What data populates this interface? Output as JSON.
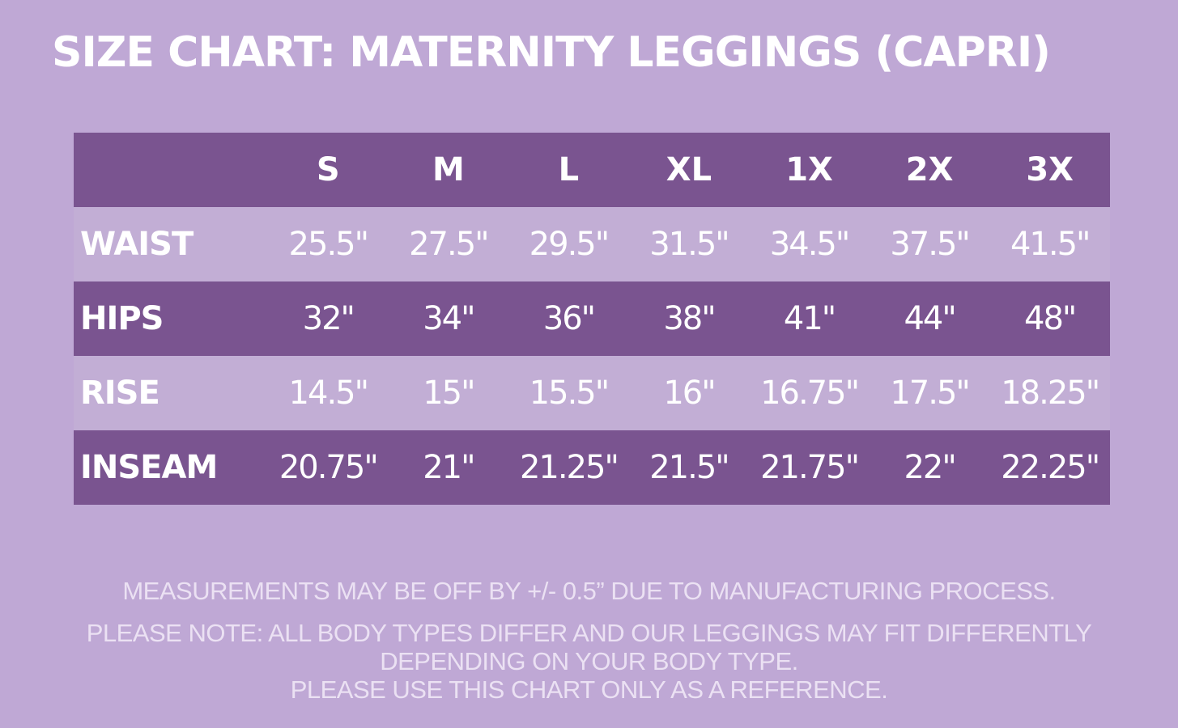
{
  "title": "SIZE CHART: MATERNITY LEGGINGS (CAPRI)",
  "colors": {
    "background": "#bfa8d5",
    "dark_row": "#7a5490",
    "light_row": "#c2aed5",
    "text": "#ffffff",
    "note_text": "#ebe1f3"
  },
  "table": {
    "sizes": [
      "S",
      "M",
      "L",
      "XL",
      "1X",
      "2X",
      "3X"
    ],
    "rows": [
      {
        "label": "WAIST",
        "values": [
          "25.5\"",
          "27.5\"",
          "29.5\"",
          "31.5\"",
          "34.5\"",
          "37.5\"",
          "41.5\""
        ]
      },
      {
        "label": "HIPS",
        "values": [
          "32\"",
          "34\"",
          "36\"",
          "38\"",
          "41\"",
          "44\"",
          "48\""
        ]
      },
      {
        "label": "RISE",
        "values": [
          "14.5\"",
          "15\"",
          "15.5\"",
          "16\"",
          "16.75\"",
          "17.5\"",
          "18.25\""
        ]
      },
      {
        "label": "INSEAM",
        "values": [
          "20.75\"",
          "21\"",
          "21.25\"",
          "21.5\"",
          "21.75\"",
          "22\"",
          "22.25\""
        ]
      }
    ]
  },
  "notes": {
    "line1": "MEASUREMENTS MAY BE OFF BY +/- 0.5” DUE TO MANUFACTURING PROCESS.",
    "line2": "PLEASE NOTE: ALL BODY TYPES DIFFER AND OUR LEGGINGS MAY FIT DIFFERENTLY",
    "line3": "DEPENDING ON YOUR BODY TYPE.",
    "line4": "PLEASE USE THIS CHART ONLY AS A REFERENCE."
  }
}
